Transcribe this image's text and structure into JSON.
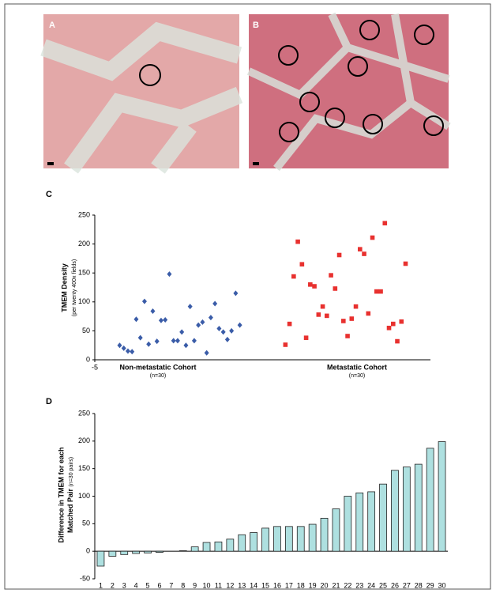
{
  "panel_labels": [
    "A",
    "B",
    "C",
    "D"
  ],
  "chart_data": [
    {
      "type": "scatter",
      "ylabel": "TMEM Density",
      "ylabel_note": "(per twenty 400x fields)",
      "x_group_labels": [
        "Non-metastatic Cohort",
        "Metastatic Cohort"
      ],
      "x_group_notes": [
        "(n=30)",
        "(n=30)"
      ],
      "xlim": [
        -5,
        76
      ],
      "xticks": [
        -5
      ],
      "ylim": [
        0,
        250
      ],
      "yticks": [
        0,
        50,
        100,
        150,
        200,
        250
      ],
      "series": [
        {
          "name": "Non-metastatic Cohort",
          "color": "#3a5ca8",
          "marker": "diamond",
          "x": [
            1,
            2,
            3,
            4,
            5,
            6,
            7,
            8,
            9,
            10,
            11,
            12,
            13,
            14,
            15,
            16,
            17,
            18,
            19,
            20,
            21,
            22,
            23,
            24,
            25,
            26,
            27,
            28,
            29,
            30
          ],
          "values": [
            25,
            20,
            15,
            14,
            70,
            38,
            101,
            27,
            84,
            32,
            68,
            69,
            148,
            33,
            33,
            48,
            25,
            92,
            33,
            60,
            65,
            12,
            73,
            97,
            54,
            48,
            35,
            50,
            115,
            60
          ]
        },
        {
          "name": "Metastatic Cohort",
          "color": "#e8312f",
          "marker": "square",
          "x": [
            41,
            42,
            43,
            44,
            45,
            46,
            47,
            48,
            49,
            50,
            51,
            52,
            53,
            54,
            55,
            56,
            57,
            58,
            59,
            60,
            61,
            62,
            63,
            64,
            65,
            66,
            67,
            68,
            69,
            70
          ],
          "values": [
            26,
            62,
            144,
            204,
            165,
            38,
            130,
            127,
            78,
            92,
            76,
            146,
            123,
            181,
            67,
            41,
            71,
            92,
            191,
            183,
            80,
            211,
            118,
            118,
            236,
            55,
            62,
            32,
            66,
            166
          ]
        }
      ]
    },
    {
      "type": "bar",
      "ylabel": "Difference in TMEM for each",
      "ylabel2": "Matched Pair",
      "ylabel_note": "(n=30 pairs)",
      "categories": [
        "1",
        "2",
        "3",
        "4",
        "5",
        "6",
        "7",
        "8",
        "9",
        "10",
        "11",
        "12",
        "13",
        "14",
        "15",
        "16",
        "17",
        "18",
        "19",
        "20",
        "21",
        "22",
        "23",
        "24",
        "25",
        "26",
        "27",
        "28",
        "29",
        "30"
      ],
      "values": [
        -27,
        -9,
        -6,
        -4,
        -3,
        -2,
        0,
        1,
        8,
        16,
        17,
        22,
        30,
        34,
        42,
        45,
        45,
        45,
        49,
        60,
        77,
        100,
        106,
        108,
        122,
        147,
        153,
        158,
        187,
        199
      ],
      "color": "#aee0e0",
      "ylim": [
        -50,
        250
      ],
      "yticks": [
        -50,
        0,
        50,
        100,
        150,
        200,
        250
      ]
    }
  ]
}
